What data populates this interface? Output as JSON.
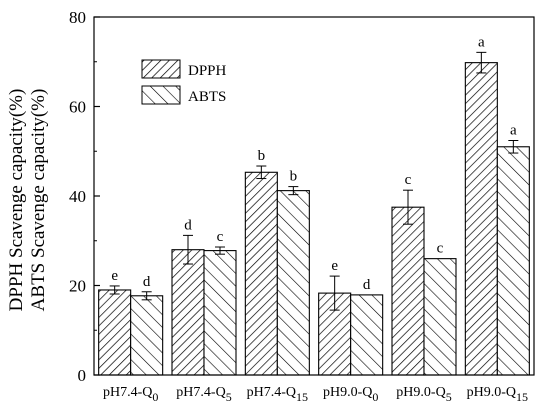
{
  "chart_data": {
    "type": "bar",
    "categories": [
      "pH7.4-Q0",
      "pH7.4-Q5",
      "pH7.4-Q15",
      "pH9.0-Q0",
      "pH9.0-Q5",
      "pH9.0-Q15"
    ],
    "category_labels": [
      {
        "base": "pH7.4-Q",
        "sub": "0"
      },
      {
        "base": "pH7.4-Q",
        "sub": "5"
      },
      {
        "base": "pH7.4-Q",
        "sub": "15"
      },
      {
        "base": "pH9.0-Q",
        "sub": "0"
      },
      {
        "base": "pH9.0-Q",
        "sub": "5"
      },
      {
        "base": "pH9.0-Q",
        "sub": "15"
      }
    ],
    "series": [
      {
        "name": "DPPH",
        "pattern": "back-diagonal-hatch",
        "values": [
          19.0,
          28.0,
          45.3,
          18.3,
          37.5,
          69.8
        ],
        "errors": [
          0.9,
          3.2,
          1.4,
          3.8,
          3.8,
          2.3
        ],
        "sig": [
          "e",
          "d",
          "b",
          "e",
          "c",
          "a"
        ]
      },
      {
        "name": "ABTS",
        "pattern": "forward-diagonal-hatch",
        "values": [
          17.7,
          27.8,
          41.2,
          17.9,
          26.0,
          51.0
        ],
        "errors": [
          0.9,
          0.8,
          0.9,
          0.0,
          0.0,
          1.4
        ],
        "sig": [
          "d",
          "c",
          "b",
          "d",
          "c",
          "a"
        ]
      }
    ],
    "ylabel_lines": [
      "DPPH Scavenge capacity(%)",
      "ABTS Scavenge capacity(%)"
    ],
    "xlabel": "",
    "ylim": [
      0,
      80
    ],
    "yticks": [
      0,
      20,
      40,
      60,
      80
    ],
    "legend_position": "top-left",
    "grid": false,
    "colors": {
      "bar_fill": "#ffffff",
      "stroke": "#000000"
    }
  }
}
